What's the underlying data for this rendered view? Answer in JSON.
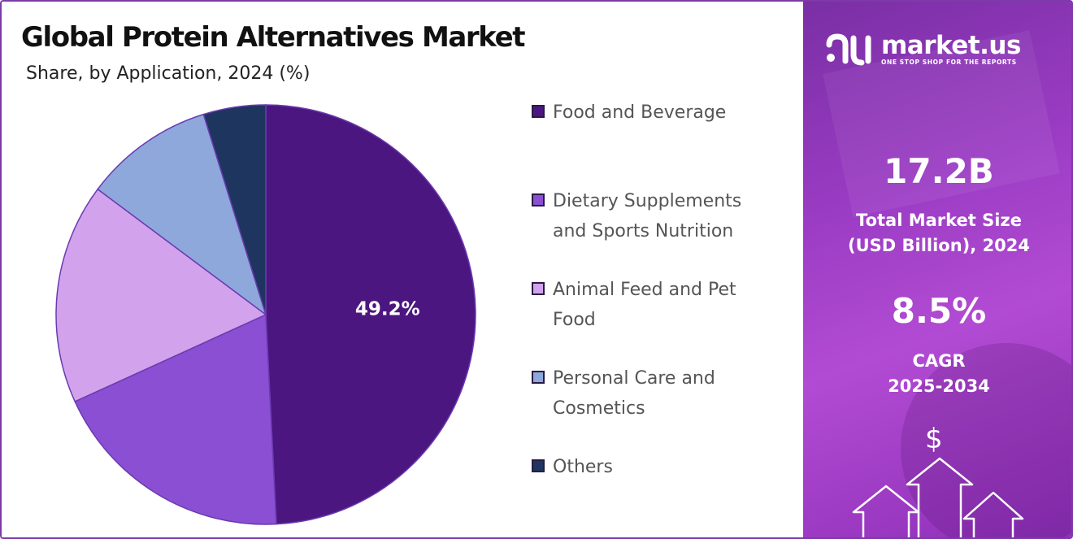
{
  "header": {
    "title": "Global Protein Alternatives Market",
    "subtitle": "Share, by Application, 2024 (%)"
  },
  "chart_data": {
    "type": "pie",
    "title": "Global Protein Alternatives Market",
    "subtitle": "Share, by Application, 2024 (%)",
    "categories": [
      "Food and Beverage",
      "Dietary Supplements and Sports Nutrition",
      "Animal Feed and Pet Food",
      "Personal Care and Cosmetics",
      "Others"
    ],
    "values": [
      49.2,
      19.0,
      17.0,
      10.0,
      4.8
    ],
    "colors": [
      "#4c1681",
      "#8a4fd3",
      "#d2a3ec",
      "#8ea8dc",
      "#1e3560"
    ],
    "data_labels": [
      "49.2%",
      "",
      "",
      "",
      ""
    ],
    "legend_position": "right"
  },
  "legend": {
    "items": [
      {
        "label_line1": "Food and Beverage",
        "label_line2": ""
      },
      {
        "label_line1": "Dietary Supplements",
        "label_line2": "and Sports Nutrition"
      },
      {
        "label_line1": "Animal Feed and Pet",
        "label_line2": "Food"
      },
      {
        "label_line1": "Personal Care and",
        "label_line2": "Cosmetics"
      },
      {
        "label_line1": "Others",
        "label_line2": ""
      }
    ]
  },
  "sidebar": {
    "logo_name": "market.us",
    "logo_tagline": "ONE STOP SHOP FOR THE REPORTS",
    "market_size_value": "17.2B",
    "market_size_label_line1": "Total Market Size",
    "market_size_label_line2": "(USD Billion), 2024",
    "cagr_value": "8.5%",
    "cagr_label_line1": "CAGR",
    "cagr_label_line2": "2025-2034",
    "currency_symbol": "$"
  }
}
